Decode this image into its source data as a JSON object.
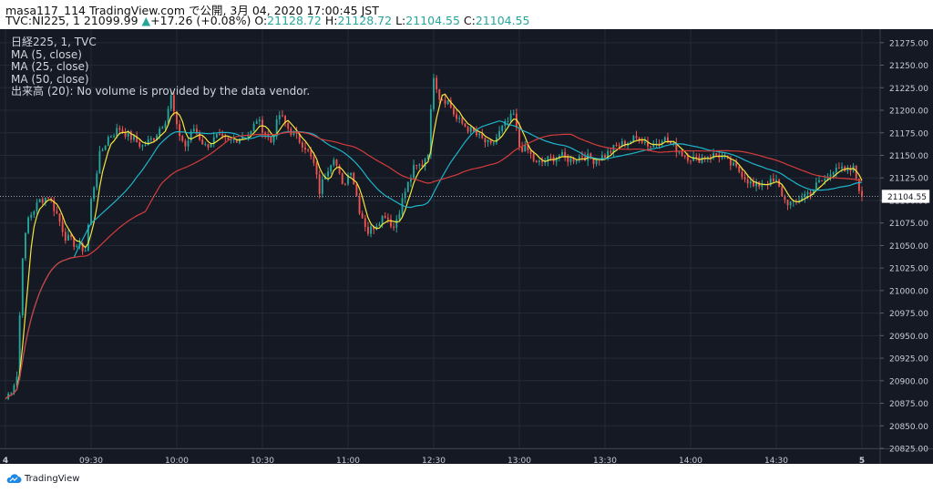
{
  "header": {
    "line1": "masa117_114 TradingView.com で公開, 3月 04, 2020 17:00:45 JST",
    "symbol": "TVC:NI225, 1",
    "last": "21099.99",
    "change": "+17.26 (+0.08%)",
    "o_label": "O:",
    "o_value": "21128.72",
    "h_label": "H:",
    "h_value": "21128.72",
    "l_label": "L:",
    "l_value": "21104.55",
    "c_label": "C:",
    "c_value": "21104.55"
  },
  "legend": {
    "title": "日経225, 1, TVC",
    "ma5": "MA (5, close)",
    "ma25": "MA (25, close)",
    "ma50": "MA (50, close)",
    "volume": "出来高 (20): No volume is provided by the data vendor."
  },
  "footer": {
    "brand": "TradingView"
  },
  "colors": {
    "background": "#151924",
    "grid": "#242a36",
    "up": "#26a69a",
    "down": "#ef5350",
    "ma5": "#f5e63c",
    "ma25": "#1cb5c9",
    "ma50": "#d63b3b",
    "axis_text": "#c8ccd6"
  },
  "chart_data": {
    "type": "candlestick",
    "price_label": "21104.55",
    "ylim": [
      20825,
      21290
    ],
    "y_ticks": [
      "21275.00",
      "21250.00",
      "21225.00",
      "21200.00",
      "21175.00",
      "21150.00",
      "21125.00",
      "21100.00",
      "21075.00",
      "21050.00",
      "21025.00",
      "21000.00",
      "20975.00",
      "20950.00",
      "20925.00",
      "20900.00",
      "20875.00",
      "20850.00",
      "20825.00"
    ],
    "x_ticks": [
      {
        "label": "4",
        "idx": 0
      },
      {
        "label": "09:30",
        "idx": 30
      },
      {
        "label": "10:00",
        "idx": 60
      },
      {
        "label": "10:30",
        "idx": 90
      },
      {
        "label": "11:00",
        "idx": 120
      },
      {
        "label": "12:30",
        "idx": 150
      },
      {
        "label": "13:00",
        "idx": 180
      },
      {
        "label": "13:30",
        "idx": 210
      },
      {
        "label": "14:00",
        "idx": 240
      },
      {
        "label": "14:30",
        "idx": 270
      },
      {
        "label": "5",
        "idx": 300
      }
    ],
    "close_anchors": [
      [
        0,
        20880
      ],
      [
        2,
        20890
      ],
      [
        4,
        20905
      ],
      [
        6,
        21040
      ],
      [
        8,
        21080
      ],
      [
        10,
        21090
      ],
      [
        12,
        21100
      ],
      [
        15,
        21105
      ],
      [
        18,
        21085
      ],
      [
        21,
        21060
      ],
      [
        25,
        21050
      ],
      [
        28,
        21045
      ],
      [
        30,
        21100
      ],
      [
        33,
        21150
      ],
      [
        36,
        21170
      ],
      [
        40,
        21180
      ],
      [
        44,
        21170
      ],
      [
        48,
        21160
      ],
      [
        52,
        21170
      ],
      [
        56,
        21190
      ],
      [
        58,
        21215
      ],
      [
        60,
        21180
      ],
      [
        63,
        21160
      ],
      [
        66,
        21180
      ],
      [
        70,
        21160
      ],
      [
        74,
        21170
      ],
      [
        78,
        21165
      ],
      [
        82,
        21170
      ],
      [
        86,
        21175
      ],
      [
        88,
        21190
      ],
      [
        90,
        21180
      ],
      [
        93,
        21165
      ],
      [
        96,
        21195
      ],
      [
        99,
        21180
      ],
      [
        102,
        21170
      ],
      [
        105,
        21160
      ],
      [
        108,
        21140
      ],
      [
        110,
        21110
      ],
      [
        112,
        21130
      ],
      [
        115,
        21150
      ],
      [
        118,
        21115
      ],
      [
        121,
        21135
      ],
      [
        124,
        21090
      ],
      [
        127,
        21065
      ],
      [
        130,
        21075
      ],
      [
        133,
        21085
      ],
      [
        136,
        21070
      ],
      [
        138,
        21090
      ],
      [
        140,
        21110
      ],
      [
        143,
        21135
      ],
      [
        146,
        21140
      ],
      [
        148,
        21155
      ],
      [
        150,
        21240
      ],
      [
        152,
        21215
      ],
      [
        155,
        21210
      ],
      [
        158,
        21190
      ],
      [
        162,
        21180
      ],
      [
        166,
        21170
      ],
      [
        170,
        21160
      ],
      [
        174,
        21180
      ],
      [
        178,
        21195
      ],
      [
        180,
        21160
      ],
      [
        183,
        21155
      ],
      [
        186,
        21140
      ],
      [
        190,
        21145
      ],
      [
        194,
        21150
      ],
      [
        198,
        21145
      ],
      [
        202,
        21150
      ],
      [
        206,
        21145
      ],
      [
        210,
        21150
      ],
      [
        214,
        21160
      ],
      [
        218,
        21165
      ],
      [
        222,
        21170
      ],
      [
        226,
        21160
      ],
      [
        230,
        21170
      ],
      [
        234,
        21160
      ],
      [
        238,
        21150
      ],
      [
        242,
        21145
      ],
      [
        246,
        21150
      ],
      [
        250,
        21150
      ],
      [
        254,
        21140
      ],
      [
        258,
        21130
      ],
      [
        262,
        21115
      ],
      [
        266,
        21120
      ],
      [
        270,
        21120
      ],
      [
        273,
        21100
      ],
      [
        276,
        21095
      ],
      [
        279,
        21105
      ],
      [
        282,
        21110
      ],
      [
        285,
        21120
      ],
      [
        288,
        21125
      ],
      [
        291,
        21140
      ],
      [
        294,
        21130
      ],
      [
        297,
        21135
      ],
      [
        300,
        21104.55
      ]
    ]
  }
}
